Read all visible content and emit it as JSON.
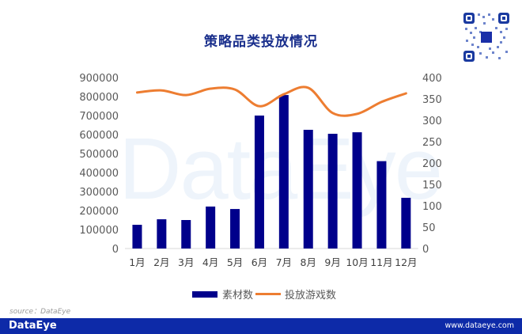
{
  "header": {
    "title": "策略品类投放情况"
  },
  "watermark": "DataEye",
  "legend": {
    "bar_label": "素材数",
    "line_label": "投放游戏数"
  },
  "source": "source：DataEye",
  "footer": {
    "brand": "DataEye",
    "url": "www.dataeye.com",
    "color": "#0d2aa8"
  },
  "colors": {
    "bar": "#00008b",
    "line": "#ed7d31"
  },
  "chart_data": {
    "type": "bar",
    "title": "策略品类投放情况",
    "categories": [
      "1月",
      "2月",
      "3月",
      "4月",
      "5月",
      "6月",
      "7月",
      "8月",
      "9月",
      "10月",
      "11月",
      "12月"
    ],
    "series": [
      {
        "name": "素材数",
        "type": "bar",
        "axis": "left",
        "values": [
          125000,
          154000,
          150000,
          221000,
          208000,
          700000,
          808000,
          625000,
          604000,
          612000,
          460000,
          267000
        ]
      },
      {
        "name": "投放游戏数",
        "type": "line",
        "axis": "right",
        "values": [
          365,
          370,
          359,
          374,
          372,
          333,
          361,
          376,
          317,
          315,
          343,
          363
        ]
      }
    ],
    "left_axis": {
      "min": 0,
      "max": 900000,
      "step": 100000,
      "ticks": [
        "0",
        "100000",
        "200000",
        "300000",
        "400000",
        "500000",
        "600000",
        "700000",
        "800000",
        "900000"
      ]
    },
    "right_axis": {
      "min": 0,
      "max": 400,
      "step": 50,
      "ticks": [
        "0",
        "50",
        "100",
        "150",
        "200",
        "250",
        "300",
        "350",
        "400"
      ]
    },
    "xlabel": "",
    "ylabel": "",
    "grid": false,
    "legend_position": "bottom"
  }
}
